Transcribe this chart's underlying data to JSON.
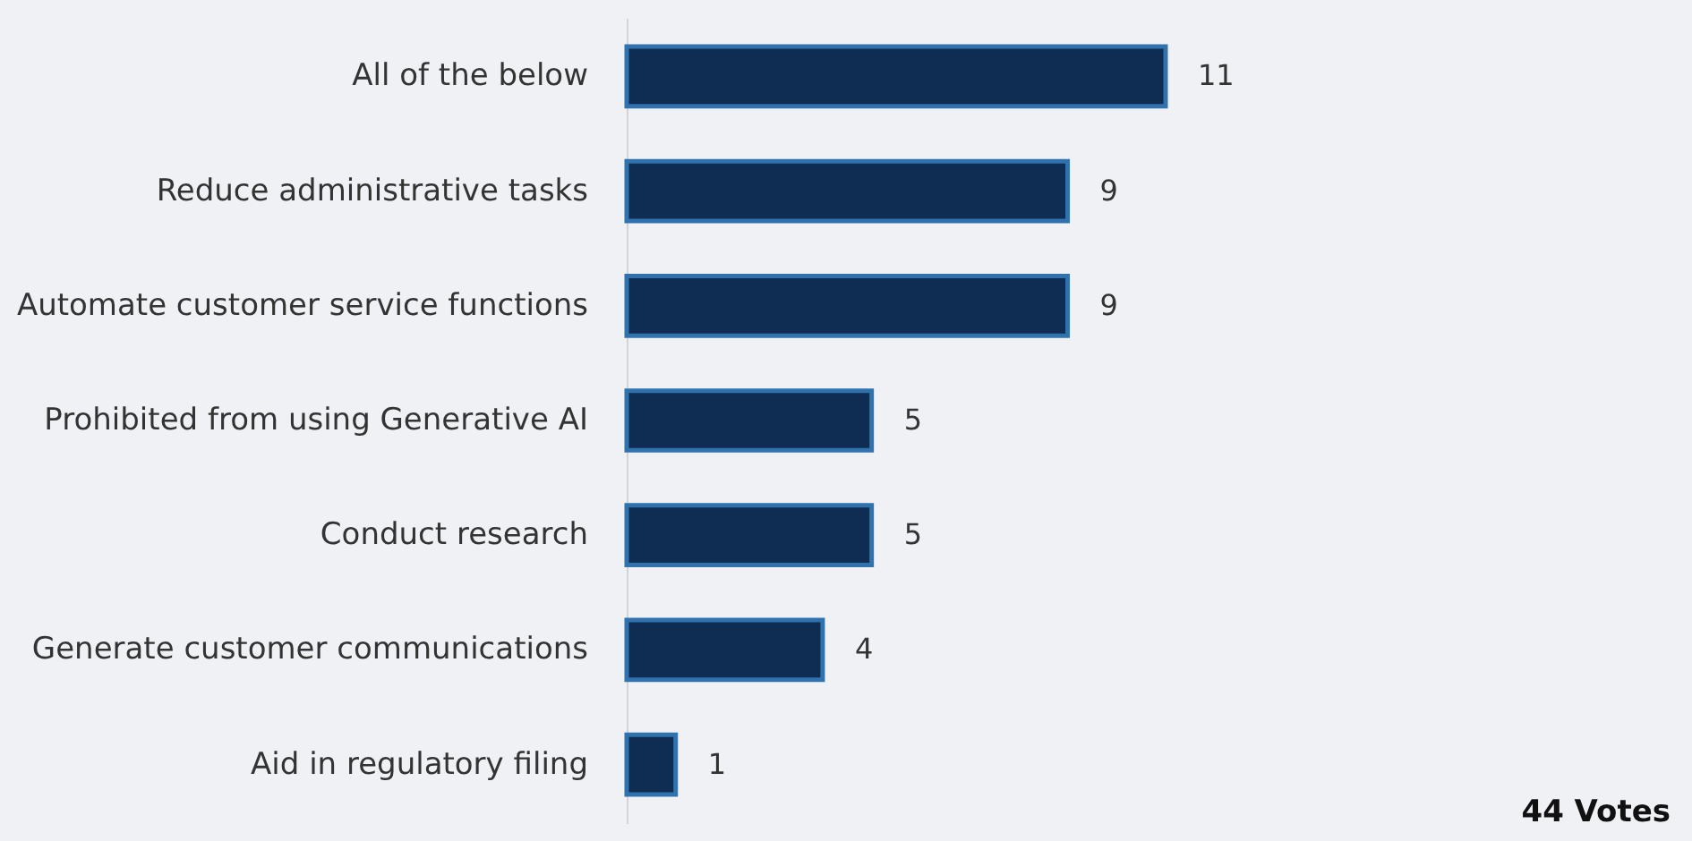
{
  "chart_data": {
    "type": "bar",
    "orientation": "horizontal",
    "categories": [
      "All of the below",
      "Reduce administrative tasks",
      "Automate customer service functions",
      "Prohibited from using Generative AI",
      "Conduct research",
      "Generate customer communications",
      "Aid in regulatory filing"
    ],
    "values": [
      11,
      9,
      9,
      5,
      5,
      4,
      1
    ],
    "color": "#0f2d52",
    "data_labels": true,
    "annotations": [
      "44 Votes"
    ]
  }
}
